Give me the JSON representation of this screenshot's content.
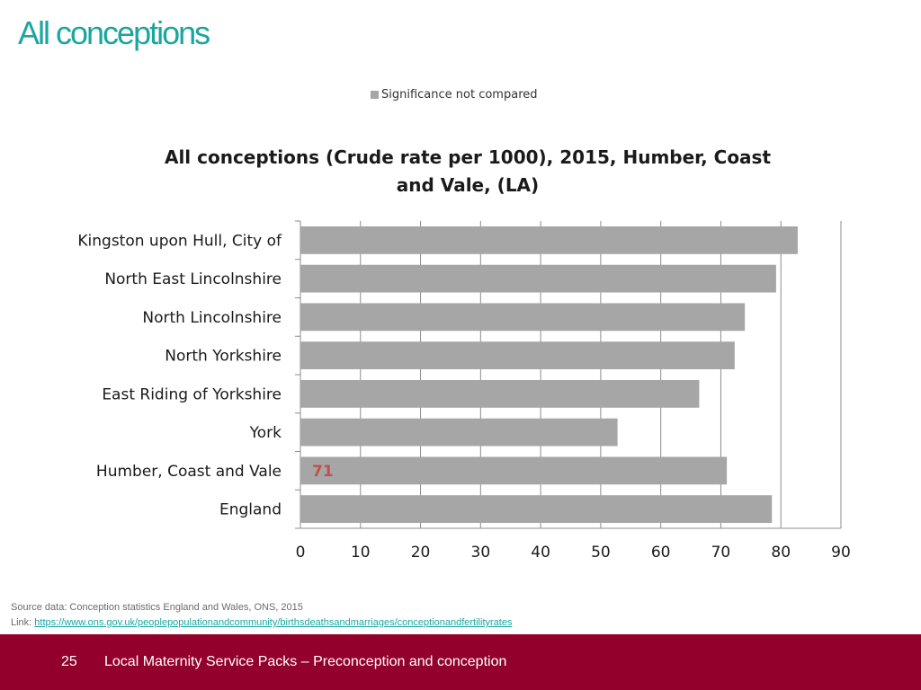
{
  "slide": {
    "title": "All conceptions",
    "source_line": "Source data: Conception statistics England and Wales, ONS, 2015",
    "link_label": "Link: ",
    "link_text": "https://www.ons.gov.uk/peoplepopulationandcommunity/birthsdeathsandmarriages/conceptionandfertilityrates"
  },
  "footer": {
    "page_number": "25",
    "text": "Local Maternity Service Packs – Preconception and conception",
    "background": "#93002b"
  },
  "chart_data": {
    "type": "bar",
    "orientation": "horizontal",
    "title": "All conceptions (Crude rate per 1000), 2015, Humber, Coast and Vale, (LA)",
    "legend": {
      "entry": "Significance not compared",
      "placement": "top",
      "color": "#a6a6a6"
    },
    "categories": [
      "Kingston upon Hull, City of",
      "North East Lincolnshire",
      "North Lincolnshire",
      "North Yorkshire",
      "East Riding of Yorkshire",
      "York",
      "Humber, Coast and Vale",
      "England"
    ],
    "values": [
      82.8,
      79.2,
      74.0,
      72.3,
      66.4,
      52.8,
      71.0,
      78.5
    ],
    "data_labels": [
      {
        "category": "Humber, Coast and Vale",
        "text": "71",
        "color": "#c0504d"
      }
    ],
    "xlim": [
      0,
      90
    ],
    "xticks": [
      0,
      10,
      20,
      30,
      40,
      50,
      60,
      70,
      80,
      90
    ],
    "grid": "vertical",
    "bar_color": "#a6a6a6"
  }
}
